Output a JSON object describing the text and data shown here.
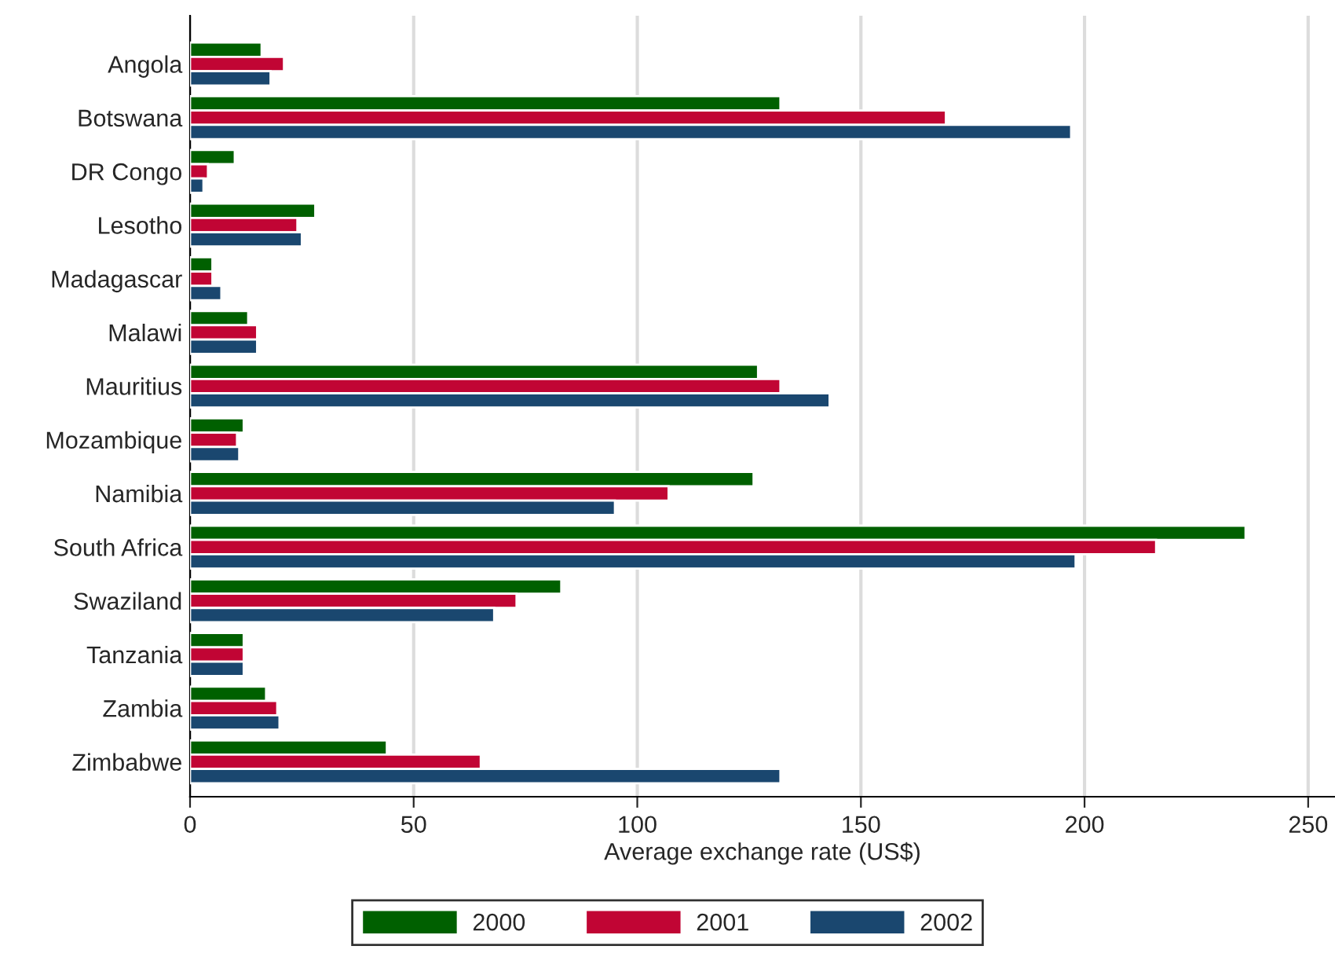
{
  "chart_data": {
    "type": "bar",
    "orientation": "horizontal",
    "xlabel": "Average exchange rate (US$)",
    "categories": [
      "Angola",
      "Botswana",
      "DR Congo",
      "Lesotho",
      "Madagascar",
      "Malawi",
      "Mauritius",
      "Mozambique",
      "Namibia",
      "South Africa",
      "Swaziland",
      "Tanzania",
      "Zambia",
      "Zimbabwe"
    ],
    "series": [
      {
        "name": "2000",
        "color": "#006000",
        "values": [
          16,
          132,
          10,
          28,
          5,
          13,
          127,
          12,
          126,
          236,
          83,
          12,
          17,
          44
        ]
      },
      {
        "name": "2001",
        "color": "#c10534",
        "values": [
          21,
          169,
          4,
          24,
          5,
          15,
          132,
          10.5,
          107,
          216,
          73,
          12,
          19.5,
          65
        ]
      },
      {
        "name": "2002",
        "color": "#1a476f",
        "values": [
          18,
          197,
          3,
          25,
          7,
          15,
          143,
          11,
          95,
          198,
          68,
          12,
          20,
          132
        ]
      }
    ],
    "xlim": [
      0,
      256
    ],
    "xticks": [
      0,
      50,
      100,
      150,
      200,
      250
    ],
    "grid": "x",
    "legend": "bottom"
  }
}
